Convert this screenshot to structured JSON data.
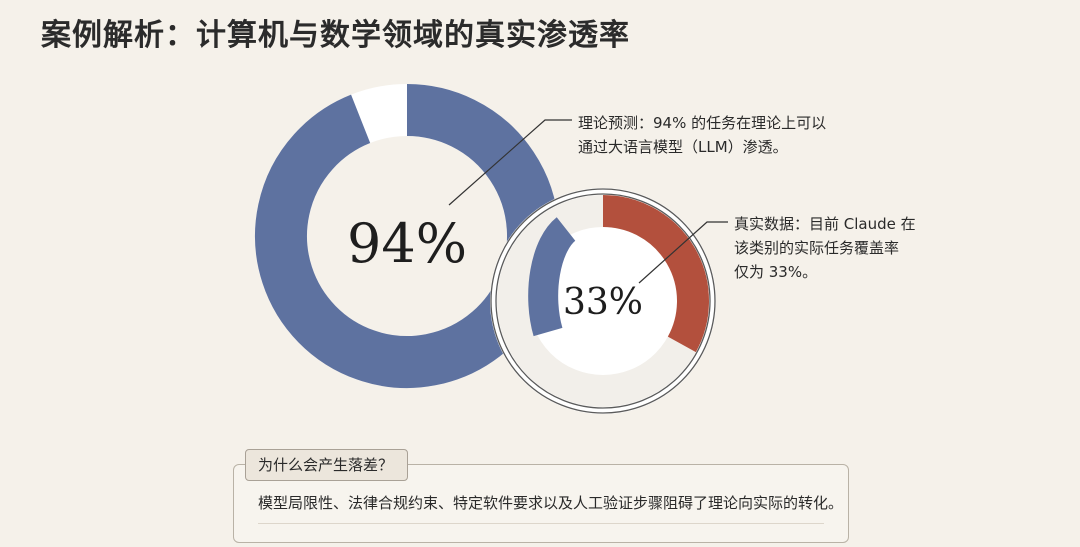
{
  "title": "案例解析：计算机与数学领域的真实渗透率",
  "chart_data": [
    {
      "type": "pie",
      "name": "理论预测",
      "value": 94,
      "unit": "%",
      "label": "94%",
      "annotation": [
        "理论预测：94% 的任务在理论上可以",
        "通过大语言模型（LLM）渗透。"
      ],
      "color": "#5e72a0"
    },
    {
      "type": "pie",
      "name": "真实数据",
      "value": 33,
      "unit": "%",
      "label": "33%",
      "annotation": [
        "真实数据：目前 Claude 在",
        "该类别的实际任务覆盖率",
        "仅为 33%。"
      ],
      "color": "#b3503d"
    }
  ],
  "note": {
    "tag": "为什么会产生落差？",
    "text": "模型局限性、法律合规约束、特定软件要求以及人工验证步骤阻碍了理论向实际的转化。"
  },
  "colors": {
    "background": "#f5f1ea",
    "theory": "#5e72a0",
    "actual": "#b3503d",
    "ring_track": "#ffffff",
    "leader_line": "#333333"
  }
}
